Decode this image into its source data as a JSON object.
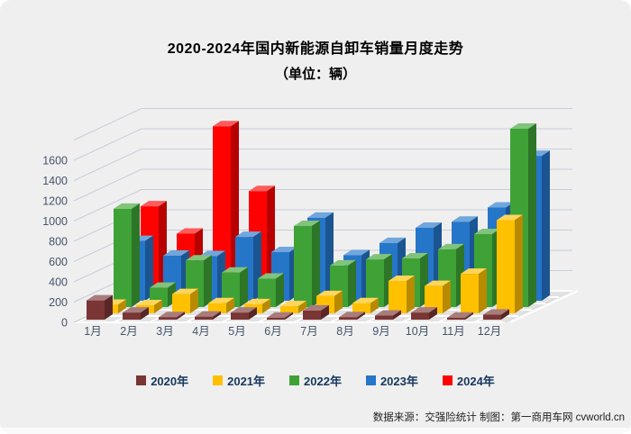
{
  "title": {
    "line1": "2020-2024年国内新能源自卸车销量月度走势",
    "line2": "（单位：辆）"
  },
  "footer": {
    "text": "数据来源：交强险统计 制图：第一商用车网 cvworld.cn"
  },
  "chart_data": {
    "type": "bar",
    "style": "3d-column",
    "title": "2020-2024年国内新能源自卸车销量月度走势（单位：辆）",
    "categories": [
      "1月",
      "2月",
      "3月",
      "4月",
      "5月",
      "6月",
      "7月",
      "8月",
      "9月",
      "10月",
      "11月",
      "12月"
    ],
    "series": [
      {
        "name": "2020年",
        "color": "#7A3535",
        "values": [
          190,
          70,
          25,
          30,
          70,
          20,
          90,
          25,
          40,
          70,
          20,
          50
        ]
      },
      {
        "name": "2021年",
        "color": "#FFC000",
        "values": [
          85,
          80,
          190,
          100,
          90,
          70,
          170,
          100,
          320,
          270,
          390,
          920
        ]
      },
      {
        "name": "2022年",
        "color": "#3EA236",
        "values": [
          970,
          190,
          460,
          340,
          280,
          800,
          410,
          470,
          480,
          570,
          720,
          1760
        ]
      },
      {
        "name": "2023年",
        "color": "#2576C9",
        "values": [
          590,
          445,
          440,
          630,
          480,
          820,
          450,
          570,
          720,
          780,
          920,
          1430
        ]
      },
      {
        "name": "2024年",
        "color": "#FE0202",
        "values": [
          870,
          600,
          1660,
          1020,
          null,
          null,
          null,
          null,
          null,
          null,
          null,
          null
        ]
      }
    ],
    "ylabels": [
      "0",
      "200",
      "400",
      "600",
      "800",
      "1000",
      "1200",
      "1400",
      "1600"
    ],
    "ylim": [
      0,
      1800
    ],
    "ytick_step": 200,
    "grid": true,
    "legend_position": "bottom",
    "gridline_color": "#C7CDDB",
    "axis_text_color": "#44546A"
  }
}
